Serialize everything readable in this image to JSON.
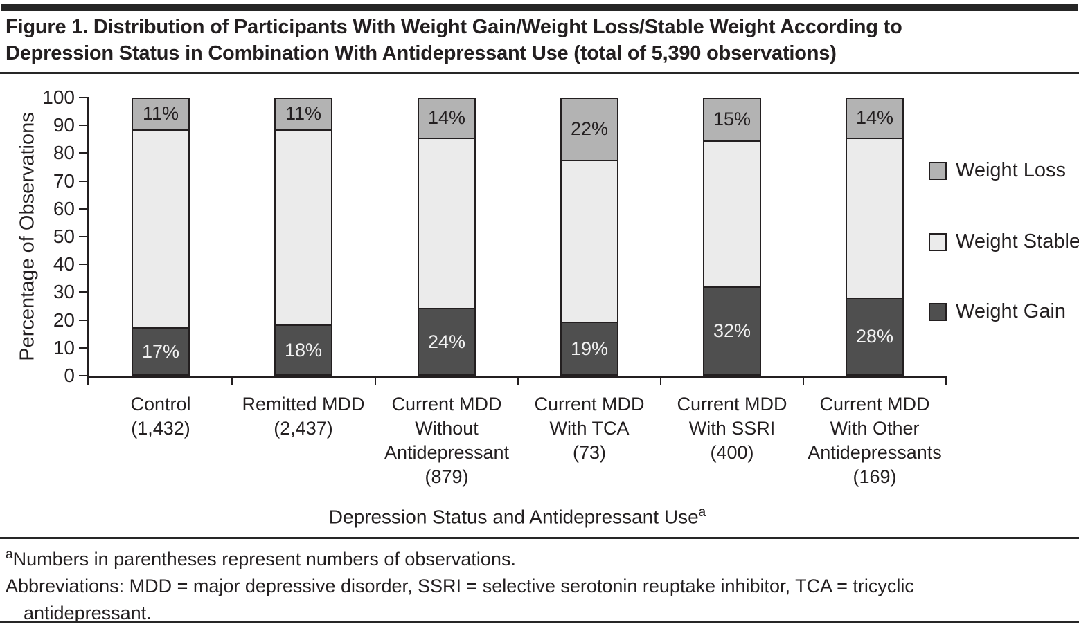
{
  "header": {
    "title_lines": [
      "Figure 1. Distribution of Participants With Weight Gain/Weight Loss/Stable Weight According to",
      "Depression Status in Combination With Antidepressant Use (total of 5,390 observations)"
    ]
  },
  "chart_data": {
    "type": "bar",
    "stacked": true,
    "ylabel": "Percentage of Observations",
    "xlabel": "Depression Status and Antidepressant Use",
    "xlabel_superscript": "a",
    "ylim": [
      0,
      100
    ],
    "ytick_step": 10,
    "grid": false,
    "legend_position": "right",
    "total_observations": "5,390",
    "categories": [
      {
        "label_lines": [
          "Control",
          "(1,432)"
        ],
        "observations": 1432
      },
      {
        "label_lines": [
          "Remitted MDD",
          "(2,437)"
        ],
        "observations": 2437
      },
      {
        "label_lines": [
          "Current MDD",
          "Without",
          "Antidepressant",
          "(879)"
        ],
        "observations": 879
      },
      {
        "label_lines": [
          "Current MDD",
          "With TCA",
          "(73)"
        ],
        "observations": 73
      },
      {
        "label_lines": [
          "Current MDD",
          "With SSRI",
          "(400)"
        ],
        "observations": 400
      },
      {
        "label_lines": [
          "Current MDD",
          "With Other",
          "Antidepressants",
          "(169)"
        ],
        "observations": 169
      }
    ],
    "series": [
      {
        "name": "Weight Gain",
        "color": "#4f4f4f",
        "text_color": "#f2f2f2",
        "show_labels": true,
        "values": [
          17,
          18,
          24,
          19,
          32,
          28
        ],
        "labels": [
          "17%",
          "18%",
          "24%",
          "19%",
          "32%",
          "28%"
        ]
      },
      {
        "name": "Weight Stable",
        "color": "#ebebeb",
        "text_color": "#231f20",
        "show_labels": false,
        "values": [
          72,
          71,
          62,
          59,
          53,
          58
        ],
        "labels": []
      },
      {
        "name": "Weight Loss",
        "color": "#b3b3b3",
        "text_color": "#231f20",
        "show_labels": true,
        "values": [
          11,
          11,
          14,
          22,
          15,
          14
        ],
        "labels": [
          "11%",
          "11%",
          "14%",
          "22%",
          "15%",
          "14%"
        ]
      }
    ],
    "legend": [
      {
        "label": "Weight Loss",
        "color": "#b3b3b3"
      },
      {
        "label": "Weight Stable",
        "color": "#ebebeb"
      },
      {
        "label": "Weight Gain",
        "color": "#4f4f4f"
      }
    ]
  },
  "footnotes": {
    "marker": "a",
    "line1": "Numbers in parentheses represent numbers of observations.",
    "line2": "Abbreviations: MDD = major depressive disorder, SSRI = selective serotonin reuptake inhibitor, TCA = tricyclic",
    "line3": "antidepressant."
  },
  "colors": {
    "ink": "#231f20",
    "weight_gain": "#4f4f4f",
    "weight_stable": "#ebebeb",
    "weight_loss": "#b3b3b3"
  }
}
